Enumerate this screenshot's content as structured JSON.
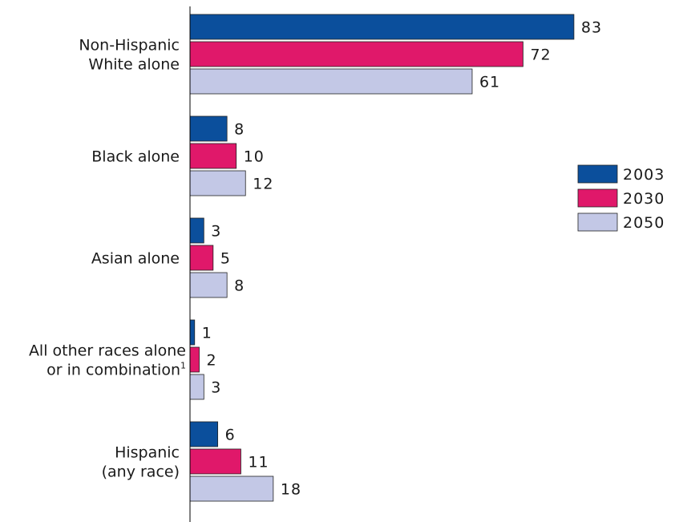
{
  "chart_data": {
    "type": "bar",
    "orientation": "horizontal",
    "categories": [
      [
        "Non-Hispanic",
        "White alone"
      ],
      [
        "Black alone"
      ],
      [
        "Asian alone"
      ],
      [
        "All other races alone",
        "or in combination"
      ],
      [
        "Hispanic",
        "(any race)"
      ]
    ],
    "category_footnotes": [
      "",
      "",
      "",
      "1",
      ""
    ],
    "series": [
      {
        "name": "2003",
        "color": "#0b4f9c",
        "values": [
          83,
          8,
          3,
          1,
          6
        ]
      },
      {
        "name": "2030",
        "color": "#e0186a",
        "values": [
          72,
          10,
          5,
          2,
          11
        ]
      },
      {
        "name": "2050",
        "color": "#c3c8e6",
        "values": [
          61,
          12,
          8,
          3,
          18
        ]
      }
    ],
    "xlim": [
      0,
      100
    ],
    "grid": false,
    "legend_position": "right"
  }
}
